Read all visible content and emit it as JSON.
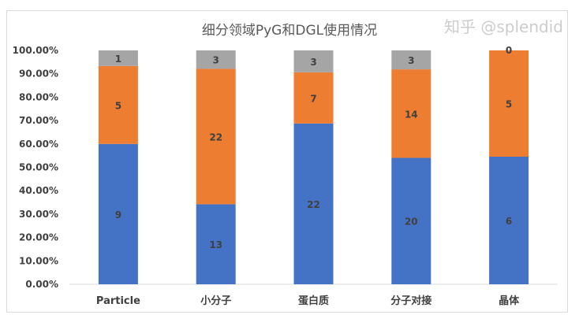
{
  "chart_data": {
    "type": "bar",
    "stacked": "percent",
    "title": "细分领域PyG和DGL使用情况",
    "categories": [
      "Particle",
      "小分子",
      "蛋白质",
      "分子对接",
      "晶体"
    ],
    "series": [
      {
        "values": [
          9,
          13,
          22,
          20,
          6
        ],
        "color": "#4472c4"
      },
      {
        "values": [
          5,
          22,
          7,
          14,
          5
        ],
        "color": "#ed7d31"
      },
      {
        "values": [
          1,
          3,
          3,
          3,
          0
        ],
        "color": "#a5a5a5"
      }
    ],
    "yticks": [
      "0.00%",
      "10.00%",
      "20.00%",
      "30.00%",
      "40.00%",
      "50.00%",
      "60.00%",
      "70.00%",
      "80.00%",
      "90.00%",
      "100.00%"
    ],
    "ylim": [
      0,
      100
    ],
    "grid": false,
    "legend": "none"
  },
  "watermark": "知乎 @splendid"
}
